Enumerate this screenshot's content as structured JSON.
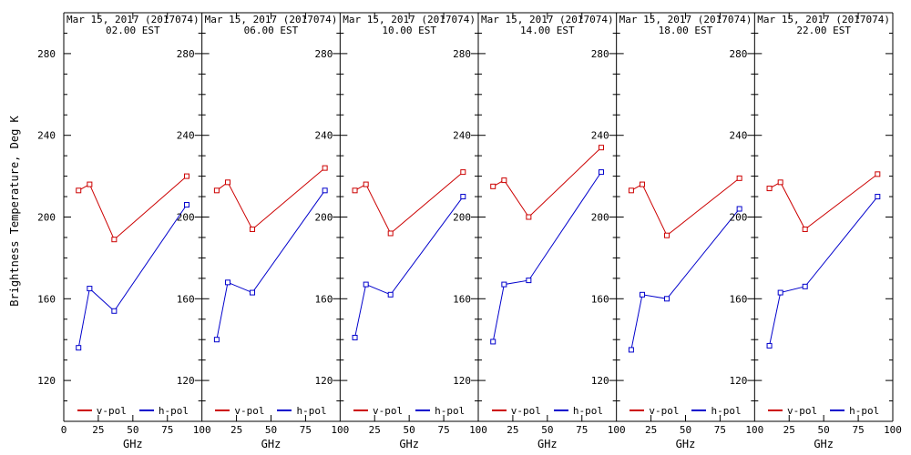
{
  "chart_data": {
    "type": "line",
    "title_date": "Mar 15, 2017 (2017074)",
    "ylabel": "Brightness Temperature, Deg K",
    "xlabel": "GHz",
    "xlim": [
      0,
      100
    ],
    "ylim": [
      100,
      300
    ],
    "x_ticks": [
      0,
      25,
      50,
      75,
      100
    ],
    "y_tick_labels": [
      120,
      160,
      200,
      240,
      280
    ],
    "y_minor_step": 10,
    "x": [
      10.7,
      18.7,
      36.5,
      89.0
    ],
    "series_names": [
      "v-pol",
      "h-pol"
    ],
    "legend": {
      "v_label": "v-pol",
      "h_label": "h-pol",
      "position": "bottom-inside"
    },
    "colors": {
      "v_pol": "#cc0000",
      "h_pol": "#0000cc",
      "axis": "#000000",
      "background": "#ffffff"
    },
    "panels": [
      {
        "time": "02.00 EST",
        "v_pol": [
          213,
          216,
          189,
          220
        ],
        "h_pol": [
          136,
          165,
          154,
          206
        ]
      },
      {
        "time": "06.00 EST",
        "v_pol": [
          213,
          217,
          194,
          224
        ],
        "h_pol": [
          140,
          168,
          163,
          213
        ]
      },
      {
        "time": "10.00 EST",
        "v_pol": [
          213,
          216,
          192,
          222
        ],
        "h_pol": [
          141,
          167,
          162,
          210
        ]
      },
      {
        "time": "14.00 EST",
        "v_pol": [
          215,
          218,
          200,
          234
        ],
        "h_pol": [
          139,
          167,
          169,
          222
        ]
      },
      {
        "time": "18.00 EST",
        "v_pol": [
          213,
          216,
          191,
          219
        ],
        "h_pol": [
          135,
          162,
          160,
          204
        ]
      },
      {
        "time": "22.00 EST",
        "v_pol": [
          214,
          217,
          194,
          221
        ],
        "h_pol": [
          137,
          163,
          166,
          210
        ]
      }
    ]
  }
}
